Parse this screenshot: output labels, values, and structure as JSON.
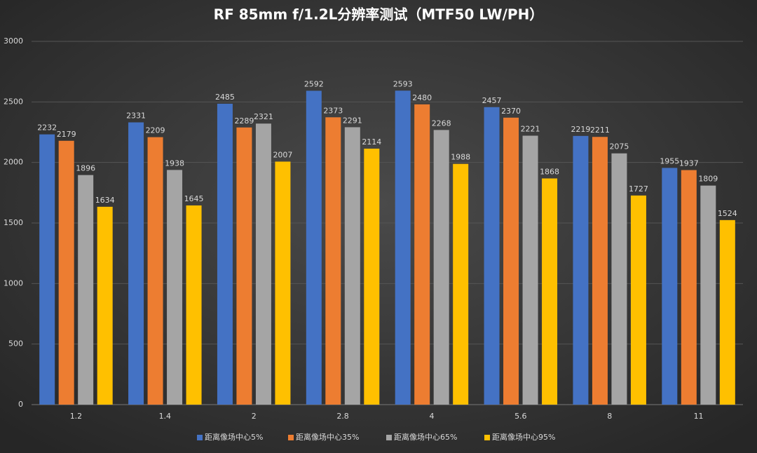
{
  "chart_data": {
    "type": "bar",
    "title": "RF 85mm f/1.2L分辨率测试（MTF50 LW/PH）",
    "categories": [
      "1.2",
      "1.4",
      "2",
      "2.8",
      "4",
      "5.6",
      "8",
      "11"
    ],
    "series": [
      {
        "name": "距离像场中心5%",
        "color": "#4472c4",
        "values": [
          2232,
          2331,
          2485,
          2592,
          2593,
          2457,
          2219,
          1955
        ]
      },
      {
        "name": "距离像场中心35%",
        "color": "#ed7d31",
        "values": [
          2179,
          2209,
          2289,
          2373,
          2480,
          2370,
          2211,
          1937
        ]
      },
      {
        "name": "距离像场中心65%",
        "color": "#a5a5a5",
        "values": [
          1896,
          1938,
          2321,
          2291,
          2268,
          2221,
          2075,
          1809
        ]
      },
      {
        "name": "距离像场中心95%",
        "color": "#ffc000",
        "values": [
          1634,
          1645,
          2007,
          2114,
          1988,
          1868,
          1727,
          1524
        ]
      }
    ],
    "ylim": [
      0,
      3000
    ],
    "yticks": [
      0,
      500,
      1000,
      1500,
      2000,
      2500,
      3000
    ],
    "grid": true,
    "legend": "bottom"
  }
}
